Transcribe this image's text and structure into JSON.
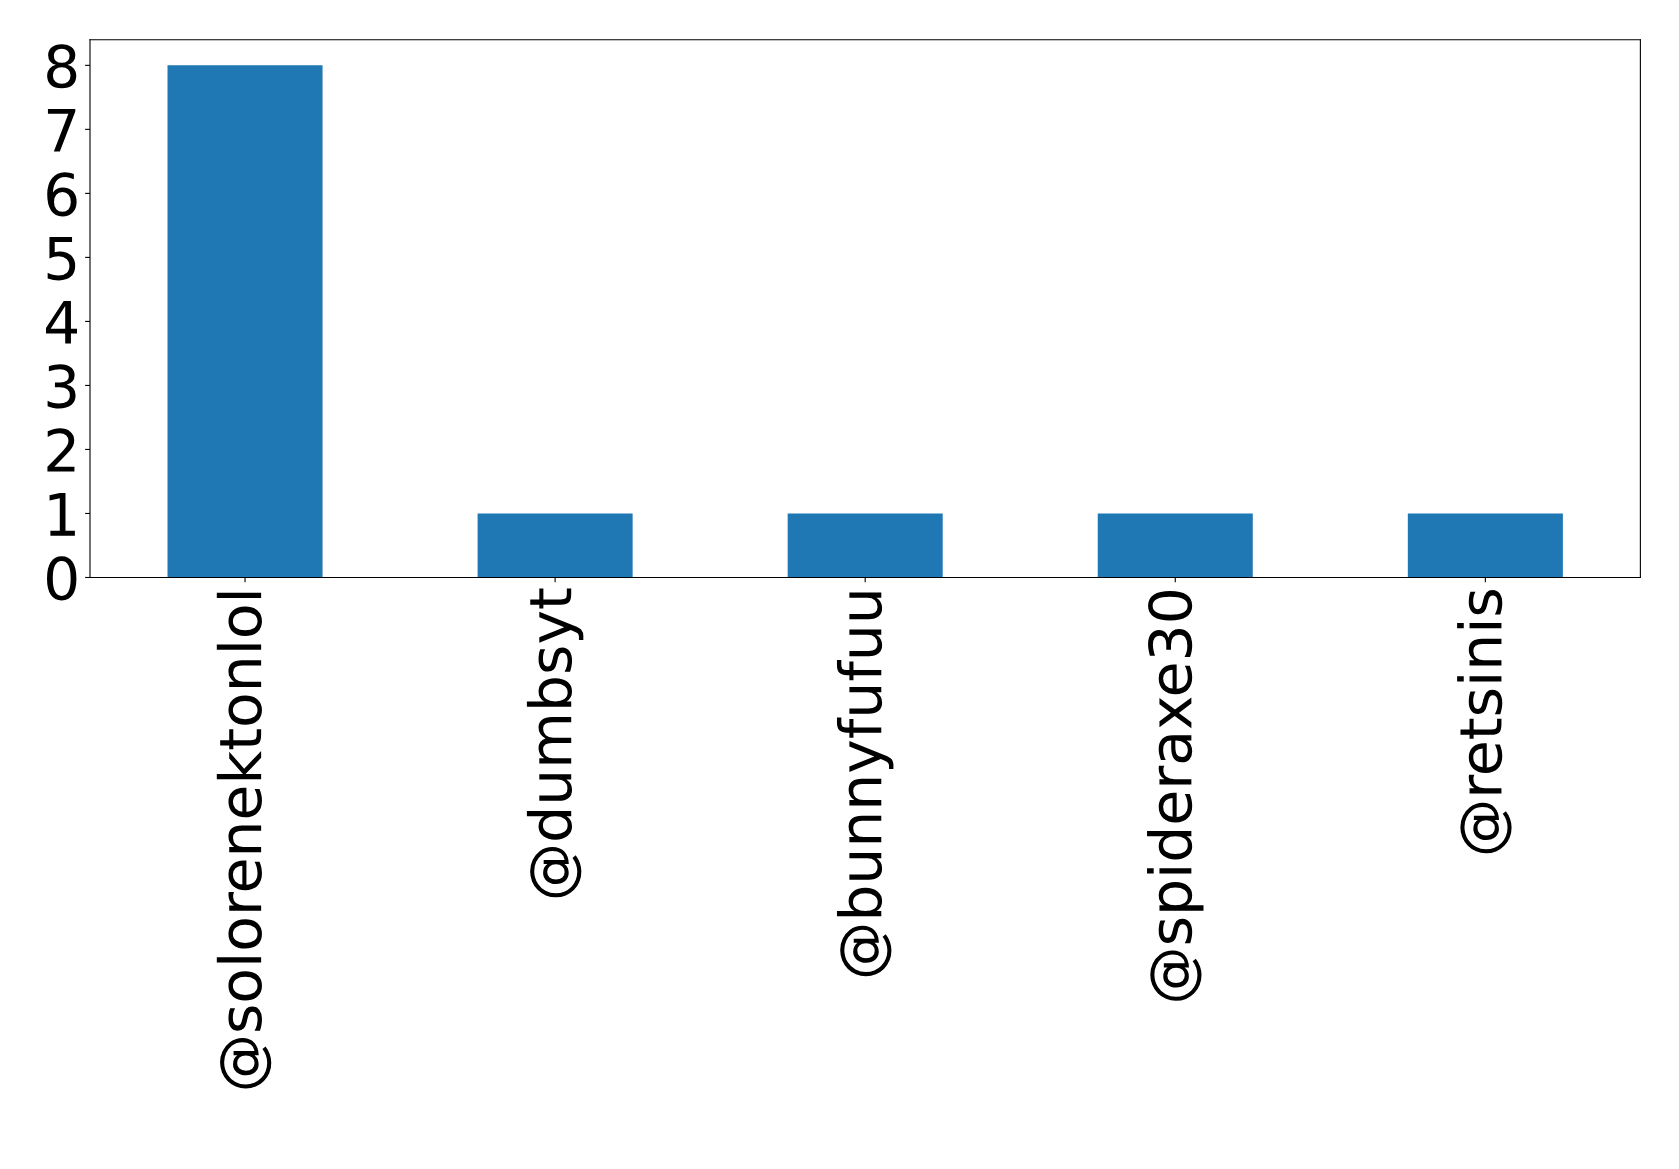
{
  "chart_data": {
    "type": "bar",
    "categories": [
      "@solorenektonlol",
      "@dumbsyt",
      "@bunnyfufuu",
      "@spideraxe30",
      "@retsinis"
    ],
    "values": [
      8,
      1,
      1,
      1,
      1
    ],
    "color": "#1f77b4",
    "ylim": [
      0,
      8.4
    ],
    "yticks": [
      0,
      1,
      2,
      3,
      4,
      5,
      6,
      7,
      8
    ],
    "grid": false,
    "legend": false
  }
}
